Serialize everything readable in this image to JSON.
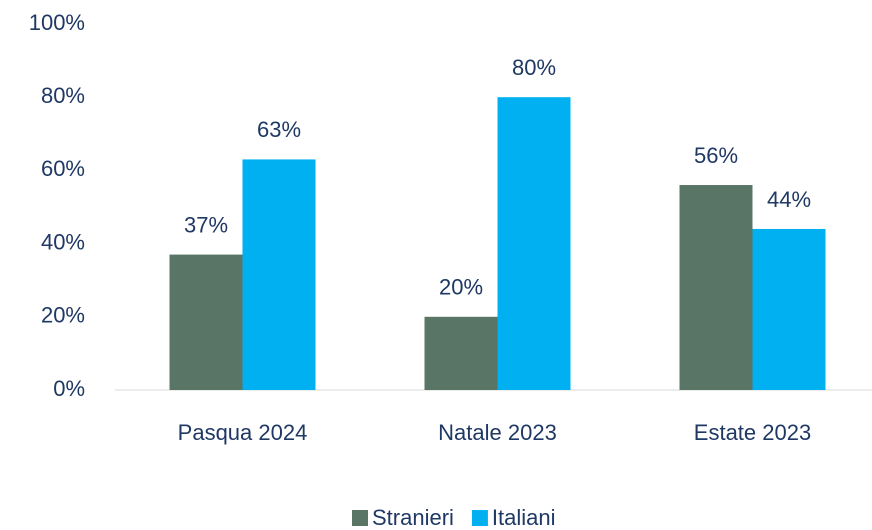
{
  "chart_data": {
    "type": "bar",
    "categories": [
      "Pasqua 2024",
      "Natale 2023",
      "Estate 2023"
    ],
    "series": [
      {
        "name": "Stranieri",
        "color": "#587565",
        "values": [
          37,
          20,
          56
        ],
        "value_labels": [
          "37%",
          "20%",
          "56%"
        ]
      },
      {
        "name": "Italiani",
        "color": "#00b0f0",
        "values": [
          63,
          80,
          44
        ],
        "value_labels": [
          "63%",
          "80%",
          "44%"
        ]
      }
    ],
    "ylim": [
      0,
      100
    ],
    "yticks": [
      {
        "value": 0,
        "label": "0%"
      },
      {
        "value": 20,
        "label": "20%"
      },
      {
        "value": 40,
        "label": "40%"
      },
      {
        "value": 60,
        "label": "60%"
      },
      {
        "value": 80,
        "label": "80%"
      },
      {
        "value": 100,
        "label": "100%"
      }
    ],
    "legend": "bottom"
  }
}
